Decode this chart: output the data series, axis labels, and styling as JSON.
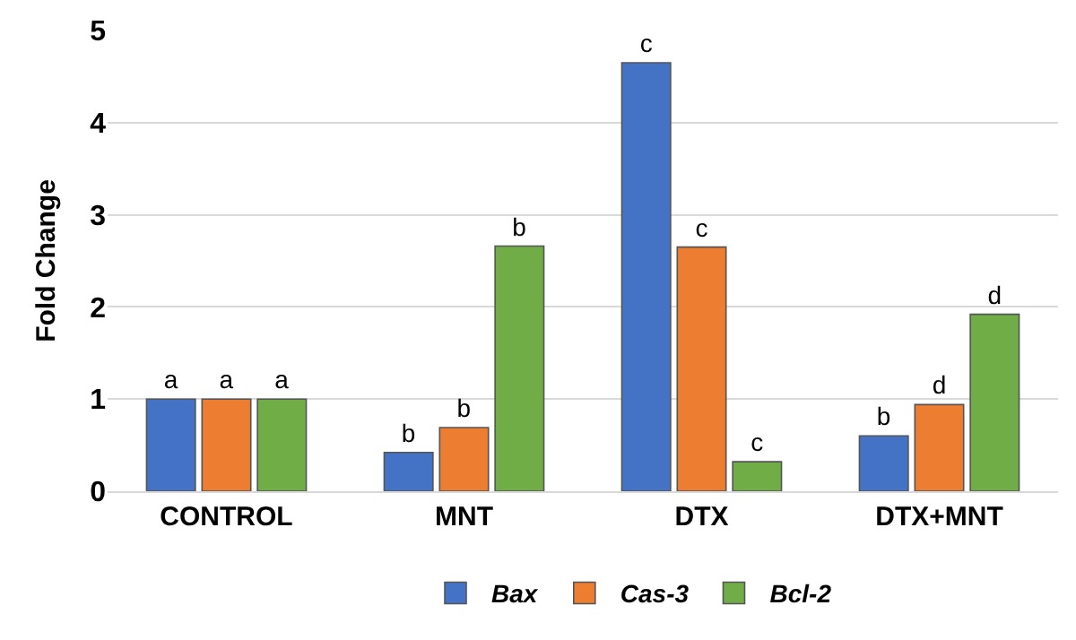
{
  "chart_data": {
    "type": "bar",
    "ylabel": "Fold Change",
    "categories": [
      "CONTROL",
      "MNT",
      "DTX",
      "DTX+MNT"
    ],
    "series": [
      {
        "name": "Bax",
        "color": "#4472c4",
        "values": [
          1,
          0.42,
          4.65,
          0.6
        ],
        "value_labels": [
          "a",
          "b",
          "c",
          "b"
        ]
      },
      {
        "name": "Cas-3",
        "color": "#ed7d31",
        "values": [
          1,
          0.69,
          2.65,
          0.94
        ],
        "value_labels": [
          "a",
          "b",
          "c",
          "d"
        ]
      },
      {
        "name": "Bcl-2",
        "color": "#70ad47",
        "values": [
          1,
          2.66,
          0.32,
          1.92
        ],
        "value_labels": [
          "a",
          "b",
          "c",
          "d"
        ]
      }
    ],
    "ylim": [
      0,
      5
    ],
    "yticks": [
      0,
      1,
      2,
      3,
      4,
      5
    ],
    "grid": "y",
    "legend": "bottom"
  }
}
